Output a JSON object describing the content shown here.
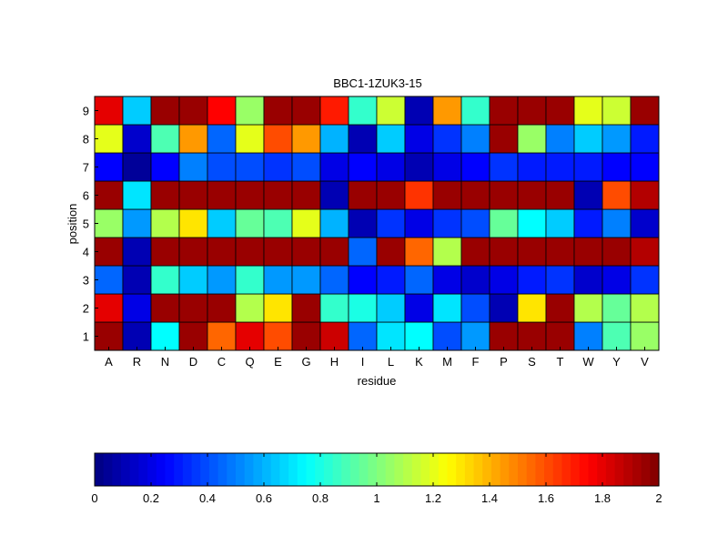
{
  "chart_data": {
    "type": "heatmap",
    "title": "BBC1-1ZUK3-15",
    "xlabel": "residue",
    "ylabel": "position",
    "x_categories": [
      "A",
      "R",
      "N",
      "D",
      "C",
      "Q",
      "E",
      "G",
      "H",
      "I",
      "L",
      "K",
      "M",
      "F",
      "P",
      "S",
      "T",
      "W",
      "Y",
      "V"
    ],
    "y_categories": [
      "1",
      "2",
      "3",
      "4",
      "5",
      "6",
      "7",
      "8",
      "9"
    ],
    "colormap": "jet",
    "clim": [
      0,
      2
    ],
    "colorbar_ticks": [
      0,
      0.2,
      0.4,
      0.6,
      0.8,
      1,
      1.2,
      1.4,
      1.6,
      1.8,
      2
    ],
    "colorbar_tick_labels": [
      "0",
      "0.2",
      "0.4",
      "0.6",
      "0.8",
      "1",
      "1.2",
      "1.4",
      "1.6",
      "1.8",
      "2"
    ],
    "colorbar_position": "bottom",
    "values": [
      [
        1.95,
        0.1,
        0.75,
        1.95,
        1.55,
        1.8,
        1.6,
        1.95,
        1.85,
        0.45,
        0.7,
        0.75,
        0.4,
        0.55,
        1.95,
        1.95,
        1.95,
        0.5,
        0.9,
        1.05
      ],
      [
        1.8,
        0.2,
        1.95,
        1.95,
        1.95,
        1.1,
        1.3,
        1.95,
        0.85,
        0.8,
        0.65,
        0.2,
        0.7,
        0.4,
        0.1,
        1.3,
        1.95,
        1.1,
        0.95,
        1.1
      ],
      [
        0.45,
        0.1,
        0.85,
        0.65,
        0.55,
        0.85,
        0.55,
        0.55,
        0.45,
        0.25,
        0.3,
        0.45,
        0.2,
        0.15,
        0.2,
        0.3,
        0.35,
        0.15,
        0.2,
        0.35
      ],
      [
        1.95,
        0.1,
        1.95,
        1.95,
        1.95,
        1.95,
        1.95,
        1.95,
        1.95,
        0.45,
        1.95,
        1.55,
        1.1,
        1.95,
        1.95,
        1.95,
        1.95,
        1.95,
        1.95,
        1.9
      ],
      [
        1.05,
        0.55,
        1.1,
        1.3,
        0.65,
        0.95,
        0.9,
        1.2,
        0.6,
        0.1,
        0.35,
        0.2,
        0.35,
        0.4,
        0.95,
        0.75,
        0.65,
        0.3,
        0.5,
        0.15
      ],
      [
        1.95,
        0.7,
        1.95,
        1.95,
        1.95,
        1.95,
        1.95,
        1.95,
        0.1,
        1.95,
        1.95,
        1.65,
        1.95,
        1.95,
        1.95,
        1.95,
        1.95,
        0.1,
        1.6,
        1.9
      ],
      [
        0.25,
        0.05,
        0.25,
        0.5,
        0.4,
        0.4,
        0.35,
        0.4,
        0.2,
        0.25,
        0.2,
        0.1,
        0.2,
        0.25,
        0.35,
        0.3,
        0.3,
        0.3,
        0.25,
        0.25
      ],
      [
        1.2,
        0.15,
        0.9,
        1.45,
        0.45,
        1.2,
        1.6,
        1.45,
        0.6,
        0.1,
        0.65,
        0.2,
        0.35,
        0.5,
        1.95,
        1.05,
        0.5,
        0.65,
        0.55,
        0.3
      ],
      [
        1.8,
        0.65,
        1.95,
        1.95,
        1.75,
        1.05,
        1.95,
        1.95,
        1.7,
        0.85,
        1.15,
        0.1,
        1.45,
        0.85,
        1.95,
        1.95,
        1.95,
        1.2,
        1.15,
        1.95
      ]
    ]
  }
}
